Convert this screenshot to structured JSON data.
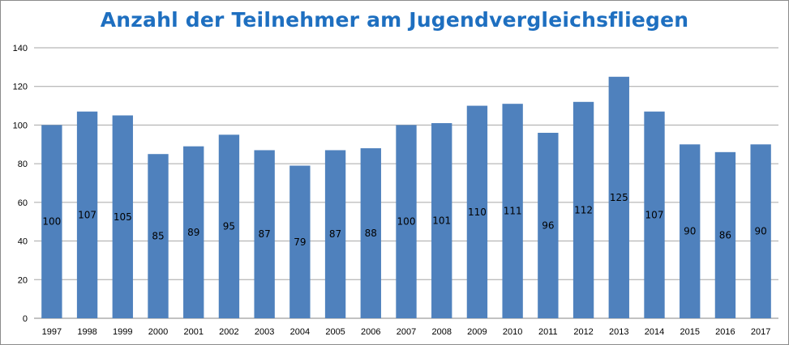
{
  "chart_data": {
    "type": "bar",
    "title": "Anzahl der Teilnehmer am Jugendvergleichsfliegen",
    "xlabel": "",
    "ylabel": "",
    "categories": [
      "1997",
      "1998",
      "1999",
      "2000",
      "2001",
      "2002",
      "2003",
      "2004",
      "2005",
      "2006",
      "2007",
      "2008",
      "2009",
      "2010",
      "2011",
      "2012",
      "2013",
      "2014",
      "2015",
      "2016",
      "2017"
    ],
    "values": [
      100,
      107,
      105,
      85,
      89,
      95,
      87,
      79,
      87,
      88,
      100,
      101,
      110,
      111,
      96,
      112,
      125,
      107,
      90,
      86,
      90
    ],
    "ylim": [
      0,
      140
    ],
    "yticks": [
      0,
      20,
      40,
      60,
      80,
      100,
      120,
      140
    ],
    "grid": true,
    "legend": "none",
    "bar_color": "#4f81bd",
    "title_color": "#1e6fc0"
  }
}
